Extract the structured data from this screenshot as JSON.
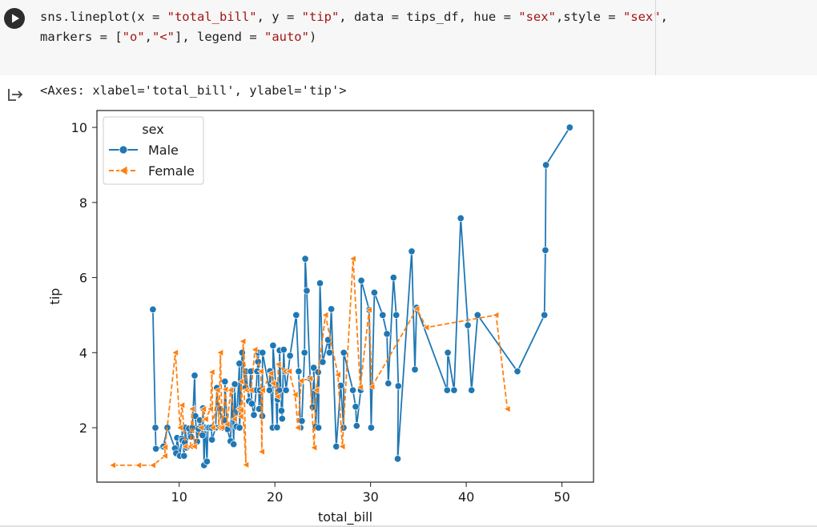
{
  "code_cell": {
    "line1_prefix": "sns.lineplot(x = ",
    "line1_x": "\"total_bill\"",
    "line1_mid1": ", y = ",
    "line1_y": "\"tip\"",
    "line1_mid2": ", data = tips_df, hue = ",
    "line1_hue": "\"sex\"",
    "line1_mid3": ",style = ",
    "line1_style": "\"sex\"",
    "line1_end": ",",
    "line2_prefix": "markers = [",
    "line2_m1": "\"o\"",
    "line2_comma": ",",
    "line2_m2": "\"<\"",
    "line2_mid": "], legend = ",
    "line2_legend": "\"auto\"",
    "line2_end": ")"
  },
  "output": {
    "text": "<Axes: xlabel='total_bill', ylabel='tip'>"
  },
  "chart_data": {
    "type": "line",
    "xlabel": "total_bill",
    "ylabel": "tip",
    "xlim": [
      1.4,
      53.3
    ],
    "ylim": [
      0.55,
      10.45
    ],
    "xticks": [
      "10",
      "20",
      "30",
      "40",
      "50"
    ],
    "yticks": [
      "2",
      "4",
      "6",
      "8",
      "10"
    ],
    "grid": false,
    "legend_title": "sex",
    "legend_position": "top-left",
    "series": [
      {
        "name": "Male",
        "color": "#1f77b4",
        "line_style": "solid",
        "marker": "circle",
        "points": [
          [
            7.25,
            5.15
          ],
          [
            7.51,
            2.0
          ],
          [
            7.56,
            1.44
          ],
          [
            8.35,
            1.5
          ],
          [
            8.77,
            2.0
          ],
          [
            9.55,
            1.45
          ],
          [
            9.68,
            1.32
          ],
          [
            9.78,
            1.73
          ],
          [
            10.07,
            1.25
          ],
          [
            10.27,
            1.71
          ],
          [
            10.33,
            2.0
          ],
          [
            10.34,
            1.66
          ],
          [
            10.51,
            1.25
          ],
          [
            10.59,
            1.61
          ],
          [
            10.63,
            2.0
          ],
          [
            10.77,
            1.47
          ],
          [
            11.02,
            1.98
          ],
          [
            11.24,
            1.76
          ],
          [
            11.38,
            2.0
          ],
          [
            11.61,
            3.39
          ],
          [
            11.69,
            2.31
          ],
          [
            11.87,
            1.63
          ],
          [
            12.02,
            1.97
          ],
          [
            12.16,
            2.2
          ],
          [
            12.43,
            1.8
          ],
          [
            12.48,
            2.52
          ],
          [
            12.6,
            1.0
          ],
          [
            12.69,
            2.0
          ],
          [
            12.74,
            2.01
          ],
          [
            12.9,
            1.1
          ],
          [
            13.0,
            2.0
          ],
          [
            13.13,
            2.0
          ],
          [
            13.37,
            2.0
          ],
          [
            13.42,
            1.68
          ],
          [
            13.81,
            2.0
          ],
          [
            13.94,
            3.06
          ],
          [
            14.07,
            2.5
          ],
          [
            14.26,
            2.5
          ],
          [
            14.52,
            2.0
          ],
          [
            14.73,
            2.2
          ],
          [
            14.78,
            3.23
          ],
          [
            15.04,
            1.96
          ],
          [
            15.36,
            1.64
          ],
          [
            15.53,
            3.0
          ],
          [
            15.69,
            1.56
          ],
          [
            15.81,
            3.16
          ],
          [
            15.98,
            2.03
          ],
          [
            16.29,
            3.71
          ],
          [
            16.31,
            2.0
          ],
          [
            16.4,
            2.5
          ],
          [
            16.58,
            4.0
          ],
          [
            16.93,
            3.07
          ],
          [
            16.97,
            3.5
          ],
          [
            17.29,
            2.71
          ],
          [
            17.47,
            3.5
          ],
          [
            17.59,
            2.64
          ],
          [
            17.81,
            2.34
          ],
          [
            18.04,
            3.0
          ],
          [
            18.15,
            3.5
          ],
          [
            18.24,
            3.76
          ],
          [
            18.28,
            4.0
          ],
          [
            18.35,
            2.5
          ],
          [
            18.43,
            3.0
          ],
          [
            18.69,
            2.31
          ],
          [
            18.71,
            4.0
          ],
          [
            19.44,
            3.0
          ],
          [
            19.49,
            3.51
          ],
          [
            19.77,
            2.0
          ],
          [
            19.81,
            4.19
          ],
          [
            20.08,
            3.15
          ],
          [
            20.23,
            2.01
          ],
          [
            20.29,
            2.75
          ],
          [
            20.45,
            3.0
          ],
          [
            20.49,
            4.06
          ],
          [
            20.69,
            2.45
          ],
          [
            20.76,
            2.24
          ],
          [
            20.92,
            4.08
          ],
          [
            21.01,
            3.5
          ],
          [
            21.16,
            3.0
          ],
          [
            21.58,
            3.92
          ],
          [
            22.23,
            5.0
          ],
          [
            22.49,
            3.5
          ],
          [
            22.67,
            2.0
          ],
          [
            22.82,
            2.18
          ],
          [
            23.1,
            4.0
          ],
          [
            23.17,
            6.5
          ],
          [
            23.33,
            5.65
          ],
          [
            23.68,
            3.31
          ],
          [
            23.95,
            2.55
          ],
          [
            24.06,
            3.6
          ],
          [
            24.27,
            2.03
          ],
          [
            24.52,
            3.48
          ],
          [
            24.55,
            2.0
          ],
          [
            24.71,
            5.85
          ],
          [
            25.0,
            3.75
          ],
          [
            25.56,
            4.34
          ],
          [
            25.71,
            4.0
          ],
          [
            25.89,
            5.16
          ],
          [
            26.41,
            1.5
          ],
          [
            26.88,
            3.12
          ],
          [
            27.18,
            2.0
          ],
          [
            27.2,
            4.0
          ],
          [
            28.15,
            3.0
          ],
          [
            28.44,
            2.56
          ],
          [
            28.55,
            2.05
          ],
          [
            28.97,
            3.0
          ],
          [
            29.03,
            5.92
          ],
          [
            29.85,
            5.14
          ],
          [
            30.06,
            2.0
          ],
          [
            30.4,
            5.6
          ],
          [
            31.27,
            5.0
          ],
          [
            31.71,
            4.5
          ],
          [
            31.85,
            3.18
          ],
          [
            32.4,
            6.0
          ],
          [
            32.68,
            5.0
          ],
          [
            32.9,
            3.11
          ],
          [
            32.83,
            1.17
          ],
          [
            34.3,
            6.7
          ],
          [
            34.63,
            3.55
          ],
          [
            34.81,
            5.2
          ],
          [
            38.01,
            3.0
          ],
          [
            38.07,
            4.0
          ],
          [
            38.73,
            3.0
          ],
          [
            39.42,
            7.58
          ],
          [
            40.17,
            4.73
          ],
          [
            40.55,
            3.0
          ],
          [
            41.19,
            5.0
          ],
          [
            45.35,
            3.5
          ],
          [
            48.17,
            5.0
          ],
          [
            48.27,
            6.73
          ],
          [
            48.33,
            9.0
          ],
          [
            50.81,
            10.0
          ]
        ]
      },
      {
        "name": "Female",
        "color": "#ff7f0e",
        "line_style": "dashed",
        "marker": "triangle-left",
        "points": [
          [
            3.07,
            1.0
          ],
          [
            5.75,
            1.0
          ],
          [
            7.25,
            1.0
          ],
          [
            8.51,
            1.25
          ],
          [
            8.52,
            1.48
          ],
          [
            9.6,
            4.0
          ],
          [
            10.09,
            2.0
          ],
          [
            10.29,
            2.6
          ],
          [
            10.65,
            1.5
          ],
          [
            11.17,
            1.5
          ],
          [
            11.35,
            2.5
          ],
          [
            11.59,
            1.5
          ],
          [
            12.26,
            2.0
          ],
          [
            12.54,
            2.5
          ],
          [
            12.76,
            2.23
          ],
          [
            13.27,
            2.5
          ],
          [
            13.42,
            3.48
          ],
          [
            13.51,
            2.0
          ],
          [
            14.0,
            3.0
          ],
          [
            14.15,
            2.0
          ],
          [
            14.31,
            4.0
          ],
          [
            14.48,
            2.0
          ],
          [
            14.83,
            3.02
          ],
          [
            15.01,
            2.09
          ],
          [
            15.38,
            3.0
          ],
          [
            15.77,
            2.23
          ],
          [
            16.27,
            2.5
          ],
          [
            16.43,
            2.3
          ],
          [
            16.45,
            2.47
          ],
          [
            16.47,
            3.23
          ],
          [
            16.99,
            1.01
          ],
          [
            16.66,
            4.3
          ],
          [
            17.07,
            3.0
          ],
          [
            17.51,
            3.0
          ],
          [
            17.92,
            4.08
          ],
          [
            18.54,
            3.5
          ],
          [
            18.64,
            1.36
          ],
          [
            18.71,
            3.0
          ],
          [
            19.59,
            3.45
          ],
          [
            19.82,
            3.18
          ],
          [
            20.27,
            2.83
          ],
          [
            20.37,
            3.69
          ],
          [
            21.01,
            3.5
          ],
          [
            21.5,
            3.5
          ],
          [
            22.12,
            2.88
          ],
          [
            22.4,
            2.0
          ],
          [
            22.75,
            3.25
          ],
          [
            23.68,
            3.31
          ],
          [
            24.1,
            1.47
          ],
          [
            24.32,
            3.0
          ],
          [
            25.28,
            5.0
          ],
          [
            26.59,
            3.41
          ],
          [
            27.05,
            1.5
          ],
          [
            28.17,
            6.5
          ],
          [
            28.92,
            3.08
          ],
          [
            29.85,
            5.14
          ],
          [
            30.14,
            3.09
          ],
          [
            34.83,
            5.17
          ],
          [
            35.83,
            4.67
          ],
          [
            43.11,
            5.0
          ],
          [
            44.3,
            2.5
          ]
        ]
      }
    ]
  }
}
